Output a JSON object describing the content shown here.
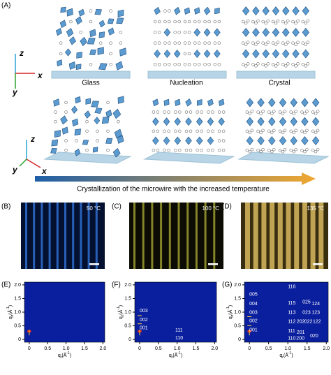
{
  "panels": {
    "A": "(A)",
    "B": "(B)",
    "C": "(C)",
    "D": "(D)",
    "E": "(E)",
    "F": "(F)",
    "G": "(G)"
  },
  "axes3d": {
    "z": "z",
    "x": "x",
    "y": "y"
  },
  "stages": [
    "Glass",
    "Nucleation",
    "Crystal"
  ],
  "arrow_caption": "Crystallization of the microwire with the increased temperature",
  "microwires": [
    "50 °C",
    "100 °C",
    "135 °C"
  ],
  "giwaxs": {
    "xlim": [
      -0.13,
      2.05
    ],
    "ylim": [
      -0.1,
      2.1
    ],
    "xticks": [
      0,
      0.5,
      {
        "value": 1,
        "label": "1.0"
      },
      1.5,
      {
        "value": 2,
        "label": "2.0"
      }
    ],
    "yticks": [
      0,
      0.5,
      {
        "value": 1,
        "label": "1.0"
      },
      1.5,
      {
        "value": 2,
        "label": "2.0"
      }
    ],
    "ylabel": [
      "q",
      "z",
      "(Å",
      "-1",
      ")"
    ],
    "xlabel": [
      "q",
      "r",
      "(Å",
      "-1",
      ")"
    ],
    "F_peaks": [
      "003",
      "002",
      "001",
      "111",
      "110"
    ],
    "G_peaks": [
      "116",
      "005",
      "115",
      "025",
      "124",
      "004",
      "003",
      "113",
      "023",
      "123",
      "002",
      "112",
      "202",
      "022",
      "122",
      "001",
      "111",
      "201",
      "110",
      "200",
      "020"
    ]
  }
}
